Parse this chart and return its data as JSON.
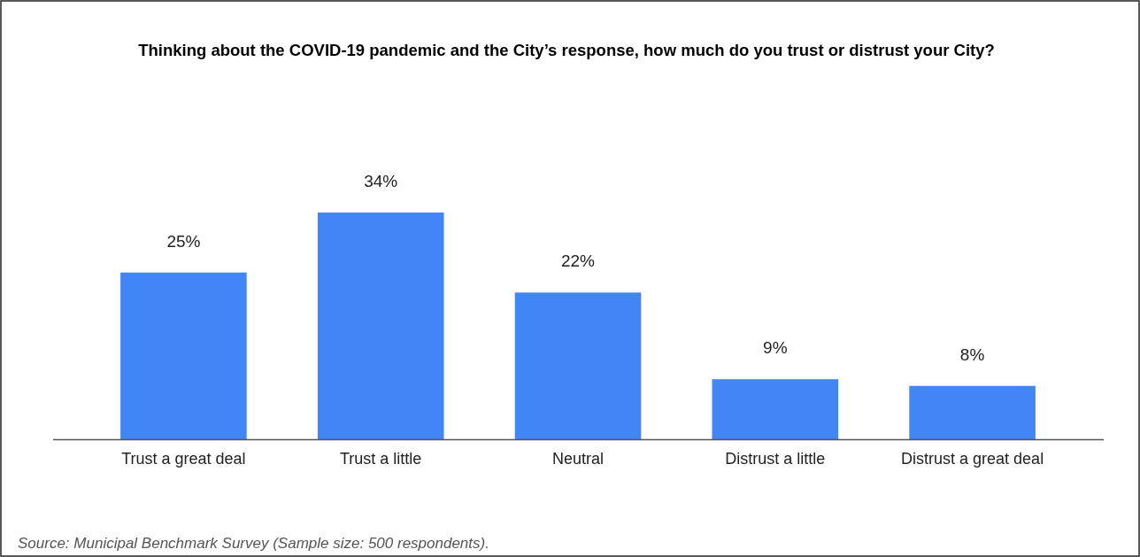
{
  "chart_data": {
    "type": "bar",
    "title": "Thinking about the COVID-19 pandemic and the City’s response, how much do you trust or distrust your City?",
    "categories": [
      "Trust a great deal",
      "Trust a little",
      "Neutral",
      "Distrust a little",
      "Distrust a great deal"
    ],
    "values": [
      25,
      34,
      22,
      9,
      8
    ],
    "value_labels": [
      "25%",
      "34%",
      "22%",
      "9%",
      "8%"
    ],
    "color": "#4285f4",
    "annotations": [
      "Source: Municipal Benchmark Survey (Sample size: 500 respondents)."
    ]
  }
}
